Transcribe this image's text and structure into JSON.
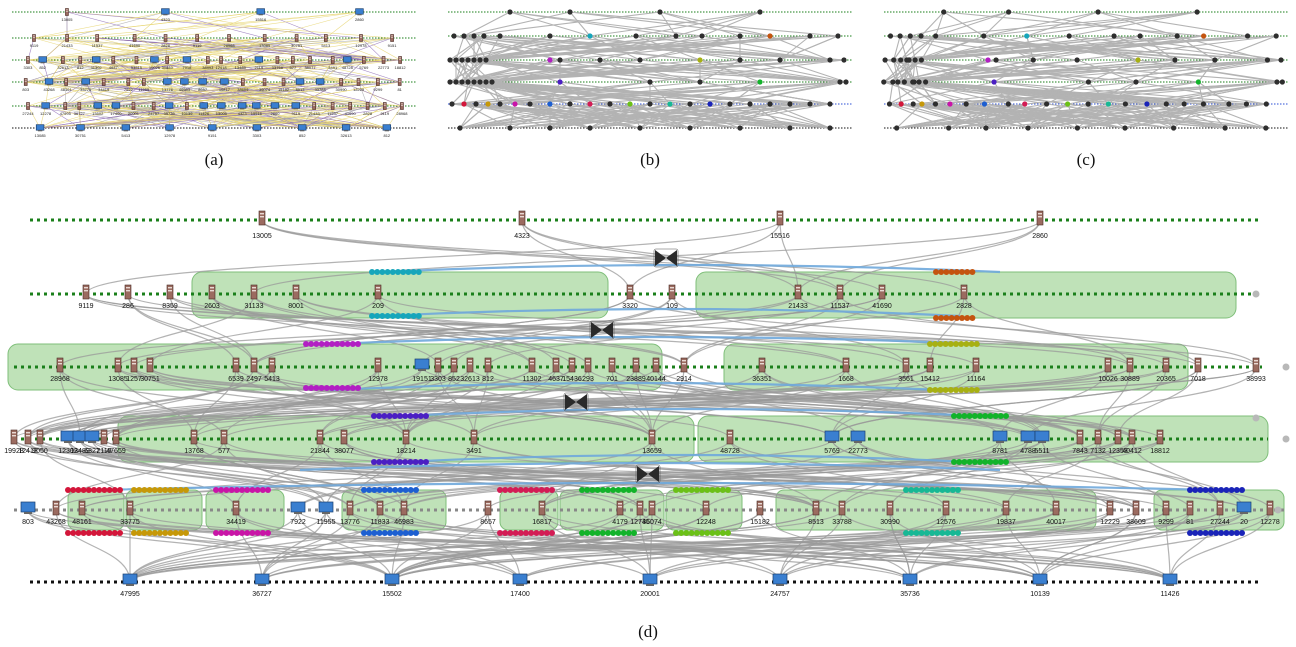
{
  "captions": {
    "a": "(a)",
    "b": "(b)",
    "c": "(c)",
    "d": "(d)"
  },
  "colors": {
    "green_dotted": "#1a7f1a",
    "black_dotted": "#111111",
    "edge_gray": "#9a9a9a",
    "edge_blue": "#6fa8dc",
    "group_fill": "#a9d8a0",
    "group_stroke": "#7fbf7a",
    "node_server": "#8a5a50",
    "node_pc": "#2f6fb3"
  },
  "groups": [
    "group-cyan",
    "group-orange",
    "group-purple",
    "group-olive",
    "group-indigo",
    "group-green",
    "group-red",
    "group-gold",
    "group-magenta",
    "group-blue",
    "group-crimson",
    "group-lime",
    "group-teal",
    "group-navy"
  ],
  "icons": {
    "server": "server-icon",
    "pc": "computer-icon",
    "hub": "hourglass-hub-icon"
  },
  "panel_a": {
    "labels": [
      "13005",
      "4323",
      "15516",
      "2860",
      "9119",
      "21433",
      "11537",
      "41690",
      "2828",
      "9119",
      "28968",
      "13085",
      "30751",
      "5413",
      "12978",
      "9151",
      "3303",
      "852",
      "32613",
      "812",
      "11302",
      "4637",
      "53515",
      "10026",
      "30889",
      "7018",
      "38993",
      "12418",
      "13489",
      "2119",
      "13768",
      "577",
      "38077",
      "3491",
      "48728",
      "5769",
      "22773",
      "18812",
      "803",
      "43268",
      "48161",
      "33775",
      "34419",
      "7922",
      "11955",
      "13776",
      "46983",
      "8657",
      "16817",
      "38609",
      "36074",
      "15182",
      "8513",
      "33788",
      "30990",
      "12229",
      "9299",
      "81",
      "27244",
      "12278",
      "47995",
      "36727",
      "15502",
      "17400",
      "20001",
      "24757",
      "35736",
      "10139",
      "11426"
    ]
  },
  "panel_d": {
    "row0": [
      "13005",
      "4323",
      "15516",
      "2860"
    ],
    "row1": [
      "9119",
      "286",
      "8359",
      "2603",
      "31133",
      "8001",
      "209",
      "3320",
      "109",
      "21433",
      "11537",
      "41690",
      "2828"
    ],
    "row2": [
      "28968",
      "13085",
      "1257",
      "30751",
      "6539",
      "2497",
      "5413",
      "12978",
      "19151",
      "3303",
      "852",
      "32613",
      "812",
      "11302",
      "4637",
      "15436",
      "293",
      "701",
      "23889",
      "40144",
      "2914",
      "36351",
      "1668",
      "3561",
      "15412",
      "11164",
      "10026",
      "30889",
      "20365",
      "7018",
      "38993"
    ],
    "row3": [
      "19928",
      "12418",
      "9050",
      "12302",
      "13489",
      "6327",
      "2119",
      "47659",
      "13768",
      "577",
      "21844",
      "38077",
      "18214",
      "3491",
      "13659",
      "48728",
      "5769",
      "22773",
      "8781",
      "4788",
      "5511",
      "7843",
      "7132",
      "12353",
      "40412",
      "18812"
    ],
    "row4": [
      "803",
      "43268",
      "48161",
      "33775",
      "34419",
      "7922",
      "11955",
      "13776",
      "11833",
      "46983",
      "8657",
      "16817",
      "4179",
      "12745",
      "36074",
      "12248",
      "15182",
      "8513",
      "33788",
      "30990",
      "12576",
      "19837",
      "40017",
      "12229",
      "38609",
      "9299",
      "81",
      "27244",
      "20",
      "12278"
    ],
    "row5": [
      "47995",
      "36727",
      "15502",
      "17400",
      "20001",
      "24757",
      "35736",
      "10139",
      "11426"
    ]
  }
}
